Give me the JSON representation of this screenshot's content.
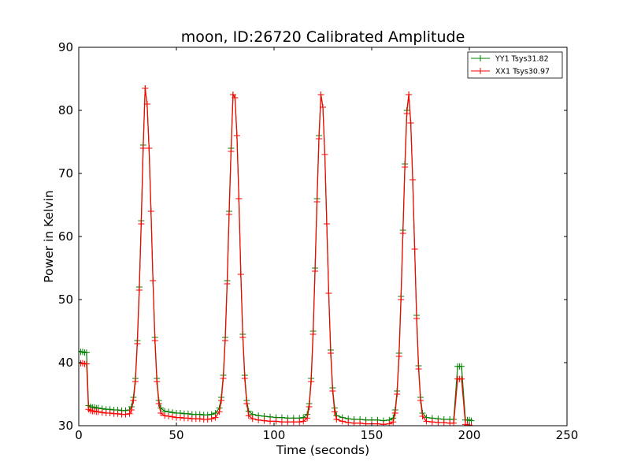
{
  "chart_data": {
    "type": "line",
    "title": "moon, ID:26720 Calibrated Amplitude",
    "xlabel": "Time (seconds)",
    "ylabel": "Power in Kelvin",
    "xlim": [
      0,
      250
    ],
    "ylim": [
      30,
      90
    ],
    "xticks": [
      0,
      50,
      100,
      150,
      200,
      250
    ],
    "yticks": [
      30,
      40,
      50,
      60,
      70,
      80,
      90
    ],
    "xtick_labels": [
      "0",
      "50",
      "100",
      "150",
      "200",
      "250"
    ],
    "ytick_labels": [
      "30",
      "40",
      "50",
      "60",
      "70",
      "80",
      "90"
    ],
    "grid": false,
    "legend_position": "top-right",
    "marker": "+",
    "series": [
      {
        "name": "YY1 Tsys31.82",
        "color": "#008000",
        "points": [
          [
            0,
            41.8
          ],
          [
            1,
            41.7
          ],
          [
            2,
            41.7
          ],
          [
            3,
            41.6
          ],
          [
            4,
            41.6
          ],
          [
            5,
            33.2
          ],
          [
            6,
            33.0
          ],
          [
            7,
            32.9
          ],
          [
            8,
            32.9
          ],
          [
            9,
            32.8
          ],
          [
            10,
            32.8
          ],
          [
            12,
            32.7
          ],
          [
            14,
            32.6
          ],
          [
            16,
            32.6
          ],
          [
            18,
            32.5
          ],
          [
            20,
            32.5
          ],
          [
            22,
            32.4
          ],
          [
            24,
            32.4
          ],
          [
            26,
            32.5
          ],
          [
            27,
            33.0
          ],
          [
            28,
            34.5
          ],
          [
            29,
            37.5
          ],
          [
            30,
            43.5
          ],
          [
            31,
            52.0
          ],
          [
            32,
            62.5
          ],
          [
            33,
            74.5
          ],
          [
            34,
            83.5
          ],
          [
            35,
            81.0
          ],
          [
            36,
            74.0
          ],
          [
            37,
            64.0
          ],
          [
            38,
            53.0
          ],
          [
            39,
            44.0
          ],
          [
            40,
            37.5
          ],
          [
            41,
            34.0
          ],
          [
            42,
            32.8
          ],
          [
            44,
            32.3
          ],
          [
            46,
            32.2
          ],
          [
            48,
            32.1
          ],
          [
            50,
            32.0
          ],
          [
            52,
            32.0
          ],
          [
            54,
            31.9
          ],
          [
            56,
            31.9
          ],
          [
            58,
            31.8
          ],
          [
            60,
            31.8
          ],
          [
            62,
            31.8
          ],
          [
            64,
            31.7
          ],
          [
            66,
            31.7
          ],
          [
            68,
            31.8
          ],
          [
            70,
            32.0
          ],
          [
            72,
            32.8
          ],
          [
            73,
            34.5
          ],
          [
            74,
            38.0
          ],
          [
            75,
            44.0
          ],
          [
            76,
            53.0
          ],
          [
            77,
            64.0
          ],
          [
            78,
            74.0
          ],
          [
            79,
            82.5
          ],
          [
            80,
            82.0
          ],
          [
            81,
            76.0
          ],
          [
            82,
            66.0
          ],
          [
            83,
            54.0
          ],
          [
            84,
            44.5
          ],
          [
            85,
            38.0
          ],
          [
            86,
            34.0
          ],
          [
            87,
            32.3
          ],
          [
            89,
            31.8
          ],
          [
            92,
            31.6
          ],
          [
            95,
            31.5
          ],
          [
            98,
            31.4
          ],
          [
            101,
            31.3
          ],
          [
            104,
            31.3
          ],
          [
            107,
            31.2
          ],
          [
            110,
            31.2
          ],
          [
            113,
            31.2
          ],
          [
            115,
            31.3
          ],
          [
            117,
            31.8
          ],
          [
            118,
            33.5
          ],
          [
            119,
            37.5
          ],
          [
            120,
            45.0
          ],
          [
            121,
            55.0
          ],
          [
            122,
            66.0
          ],
          [
            123,
            76.0
          ],
          [
            124,
            82.5
          ],
          [
            125,
            80.5
          ],
          [
            126,
            73.0
          ],
          [
            127,
            62.0
          ],
          [
            128,
            51.0
          ],
          [
            129,
            42.0
          ],
          [
            130,
            36.0
          ],
          [
            131,
            32.8
          ],
          [
            132,
            31.6
          ],
          [
            135,
            31.3
          ],
          [
            138,
            31.1
          ],
          [
            141,
            31.0
          ],
          [
            144,
            31.0
          ],
          [
            147,
            30.9
          ],
          [
            150,
            30.9
          ],
          [
            153,
            30.9
          ],
          [
            156,
            30.8
          ],
          [
            159,
            30.9
          ],
          [
            161,
            31.2
          ],
          [
            162,
            32.5
          ],
          [
            163,
            35.5
          ],
          [
            164,
            41.5
          ],
          [
            165,
            50.5
          ],
          [
            166,
            61.0
          ],
          [
            167,
            71.5
          ],
          [
            168,
            80.0
          ],
          [
            169,
            82.5
          ],
          [
            170,
            78.0
          ],
          [
            171,
            69.0
          ],
          [
            172,
            58.0
          ],
          [
            173,
            47.5
          ],
          [
            174,
            39.5
          ],
          [
            175,
            34.5
          ],
          [
            176,
            32.0
          ],
          [
            178,
            31.3
          ],
          [
            181,
            31.2
          ],
          [
            184,
            31.1
          ],
          [
            187,
            31.0
          ],
          [
            190,
            31.0
          ],
          [
            192,
            31.0
          ],
          [
            194,
            39.4
          ],
          [
            195,
            39.4
          ],
          [
            196,
            39.4
          ],
          [
            198,
            30.9
          ],
          [
            199,
            30.9
          ],
          [
            200,
            30.9
          ],
          [
            201,
            30.8
          ]
        ]
      },
      {
        "name": "XX1 Tsys30.97",
        "color": "#ff0000",
        "points": [
          [
            0,
            40.0
          ],
          [
            1,
            39.9
          ],
          [
            2,
            39.9
          ],
          [
            3,
            39.8
          ],
          [
            4,
            39.8
          ],
          [
            5,
            32.6
          ],
          [
            6,
            32.4
          ],
          [
            7,
            32.3
          ],
          [
            8,
            32.3
          ],
          [
            9,
            32.2
          ],
          [
            10,
            32.2
          ],
          [
            12,
            32.1
          ],
          [
            14,
            32.0
          ],
          [
            16,
            32.0
          ],
          [
            18,
            31.9
          ],
          [
            20,
            31.9
          ],
          [
            22,
            31.8
          ],
          [
            24,
            31.8
          ],
          [
            26,
            31.9
          ],
          [
            27,
            32.5
          ],
          [
            28,
            34.0
          ],
          [
            29,
            37.0
          ],
          [
            30,
            43.0
          ],
          [
            31,
            51.5
          ],
          [
            32,
            62.0
          ],
          [
            33,
            74.0
          ],
          [
            34,
            83.5
          ],
          [
            35,
            81.0
          ],
          [
            36,
            74.0
          ],
          [
            37,
            64.0
          ],
          [
            38,
            53.0
          ],
          [
            39,
            43.5
          ],
          [
            40,
            37.0
          ],
          [
            41,
            33.5
          ],
          [
            42,
            32.0
          ],
          [
            44,
            31.6
          ],
          [
            46,
            31.5
          ],
          [
            48,
            31.4
          ],
          [
            50,
            31.3
          ],
          [
            52,
            31.3
          ],
          [
            54,
            31.2
          ],
          [
            56,
            31.2
          ],
          [
            58,
            31.1
          ],
          [
            60,
            31.1
          ],
          [
            62,
            31.1
          ],
          [
            64,
            31.0
          ],
          [
            66,
            31.0
          ],
          [
            68,
            31.1
          ],
          [
            70,
            31.3
          ],
          [
            72,
            32.2
          ],
          [
            73,
            34.0
          ],
          [
            74,
            37.5
          ],
          [
            75,
            43.5
          ],
          [
            76,
            52.5
          ],
          [
            77,
            63.5
          ],
          [
            78,
            73.5
          ],
          [
            79,
            82.5
          ],
          [
            80,
            82.0
          ],
          [
            81,
            76.0
          ],
          [
            82,
            66.0
          ],
          [
            83,
            54.0
          ],
          [
            84,
            44.0
          ],
          [
            85,
            37.5
          ],
          [
            86,
            33.5
          ],
          [
            87,
            31.6
          ],
          [
            89,
            31.1
          ],
          [
            92,
            30.9
          ],
          [
            95,
            30.8
          ],
          [
            98,
            30.7
          ],
          [
            101,
            30.7
          ],
          [
            104,
            30.6
          ],
          [
            107,
            30.6
          ],
          [
            110,
            30.6
          ],
          [
            113,
            30.6
          ],
          [
            115,
            30.7
          ],
          [
            117,
            31.2
          ],
          [
            118,
            33.0
          ],
          [
            119,
            37.0
          ],
          [
            120,
            44.5
          ],
          [
            121,
            54.5
          ],
          [
            122,
            65.5
          ],
          [
            123,
            75.5
          ],
          [
            124,
            82.5
          ],
          [
            125,
            80.5
          ],
          [
            126,
            73.0
          ],
          [
            127,
            62.0
          ],
          [
            128,
            51.0
          ],
          [
            129,
            41.5
          ],
          [
            130,
            35.5
          ],
          [
            131,
            32.2
          ],
          [
            132,
            31.0
          ],
          [
            135,
            30.7
          ],
          [
            138,
            30.5
          ],
          [
            141,
            30.4
          ],
          [
            144,
            30.4
          ],
          [
            147,
            30.3
          ],
          [
            150,
            30.3
          ],
          [
            153,
            30.3
          ],
          [
            156,
            30.2
          ],
          [
            159,
            30.3
          ],
          [
            161,
            30.6
          ],
          [
            162,
            32.0
          ],
          [
            163,
            35.0
          ],
          [
            164,
            41.0
          ],
          [
            165,
            50.0
          ],
          [
            166,
            60.5
          ],
          [
            167,
            71.0
          ],
          [
            168,
            79.5
          ],
          [
            169,
            82.5
          ],
          [
            170,
            78.0
          ],
          [
            171,
            69.0
          ],
          [
            172,
            58.0
          ],
          [
            173,
            47.0
          ],
          [
            174,
            39.0
          ],
          [
            175,
            34.0
          ],
          [
            176,
            31.5
          ],
          [
            178,
            30.7
          ],
          [
            181,
            30.6
          ],
          [
            184,
            30.5
          ],
          [
            187,
            30.5
          ],
          [
            190,
            30.4
          ],
          [
            192,
            30.4
          ],
          [
            194,
            37.4
          ],
          [
            195,
            37.4
          ],
          [
            196,
            37.4
          ],
          [
            198,
            30.2
          ],
          [
            199,
            30.1
          ],
          [
            200,
            30.1
          ],
          [
            201,
            30.0
          ]
        ]
      }
    ]
  }
}
